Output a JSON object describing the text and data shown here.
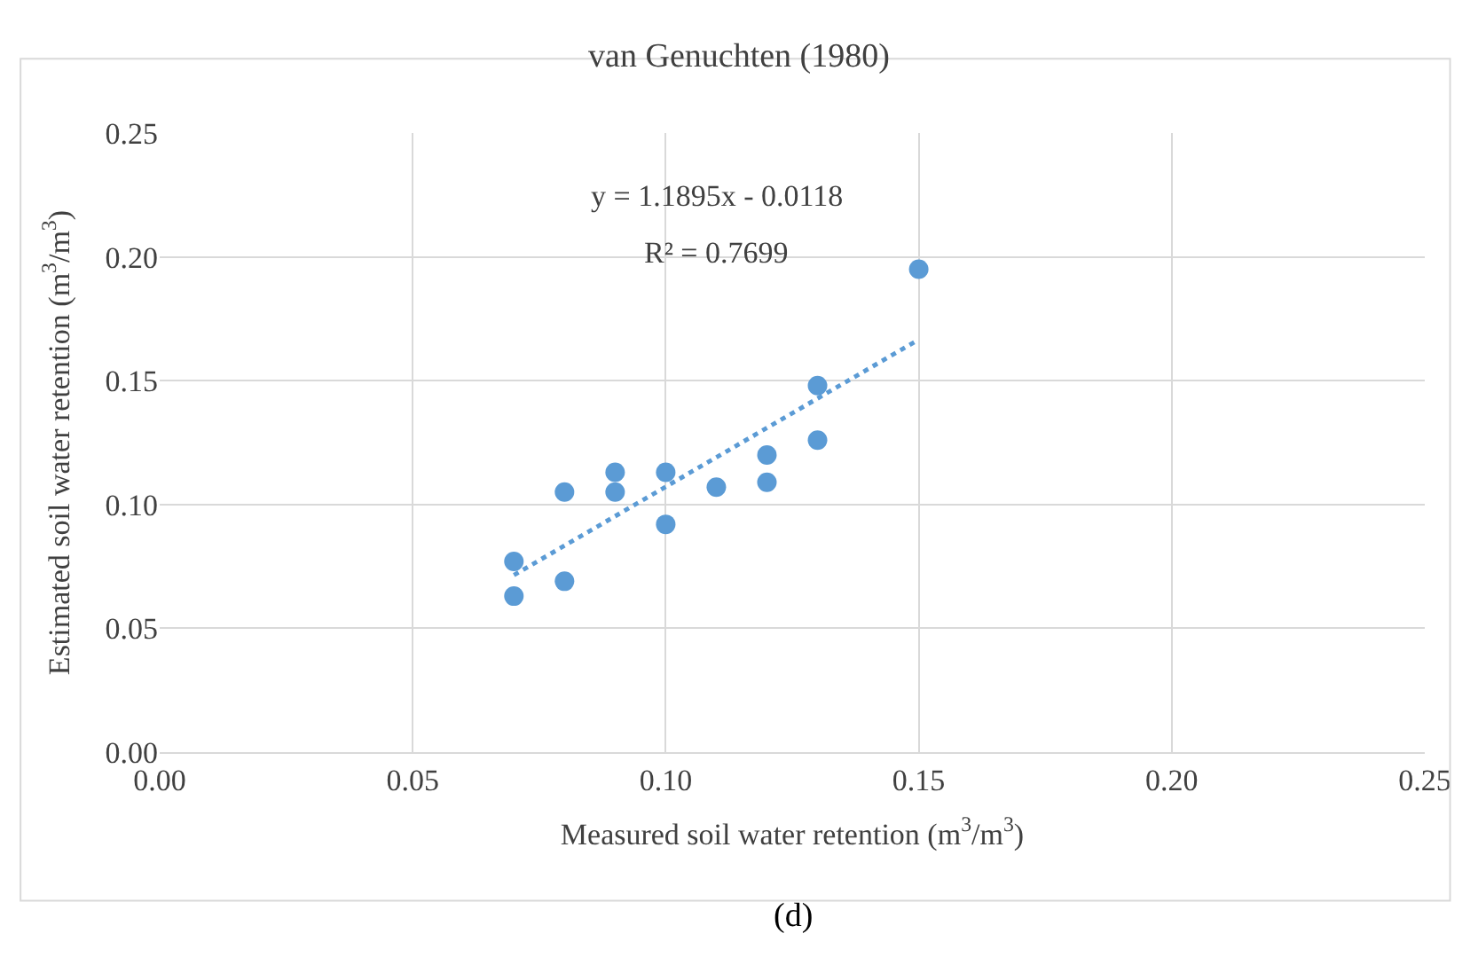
{
  "chart_data": {
    "type": "scatter",
    "title": "van Genuchten (1980)",
    "xlabel": "Measured soil water retention (m$^{3}$/m$^{3}$)",
    "ylabel": "Estimated soil water retention (m$^{3}$/m$^{3}$)",
    "series": [
      {
        "color": "#5b9bd5",
        "x": [
          0.07,
          0.07,
          0.08,
          0.08,
          0.09,
          0.09,
          0.1,
          0.1,
          0.11,
          0.12,
          0.12,
          0.13,
          0.13,
          0.15
        ],
        "values": [
          0.077,
          0.063,
          0.105,
          0.069,
          0.113,
          0.105,
          0.113,
          0.092,
          0.107,
          0.12,
          0.109,
          0.148,
          0.126,
          0.195
        ],
        "marker": "circle"
      },
      {
        "type": "line",
        "color": "#5b9bd5",
        "x": [
          0.07,
          0.15
        ],
        "values": [
          0.0715,
          0.1666
        ],
        "line_style": "dotted",
        "marker": "none"
      }
    ],
    "annotations": [
      "y = 1.1895x - 0.0118",
      "R² = 0.7699",
      "(d)"
    ],
    "xlim": [
      0,
      0.25
    ],
    "ylim": [
      0,
      0.25
    ],
    "xticks": [
      {
        "value": 0,
        "label": "0.00"
      },
      0.05,
      {
        "value": 0.1,
        "label": "0.10"
      },
      0.15,
      {
        "value": 0.2,
        "label": "0.20"
      },
      0.25
    ],
    "yticks": [
      {
        "value": 0,
        "label": "0.00"
      },
      0.05,
      {
        "value": 0.1,
        "label": "0.10"
      },
      0.15,
      {
        "value": 0.2,
        "label": "0.20"
      },
      0.25
    ],
    "grid": true
  }
}
